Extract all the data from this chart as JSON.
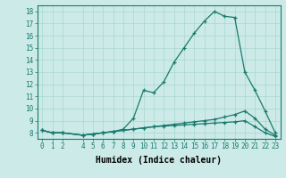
{
  "xlabel": "Humidex (Indice chaleur)",
  "background_color": "#cceae7",
  "line_color": "#1a7a6e",
  "grid_color": "#aad6d2",
  "xlim": [
    -0.5,
    23.5
  ],
  "ylim": [
    7.5,
    18.5
  ],
  "xticks": [
    0,
    1,
    2,
    4,
    5,
    6,
    7,
    8,
    9,
    10,
    11,
    12,
    13,
    14,
    15,
    16,
    17,
    18,
    19,
    20,
    21,
    22,
    23
  ],
  "yticks": [
    8,
    9,
    10,
    11,
    12,
    13,
    14,
    15,
    16,
    17,
    18
  ],
  "line1_x": [
    0,
    1,
    2,
    4,
    5,
    6,
    7,
    8,
    9,
    10,
    11,
    12,
    13,
    14,
    15,
    16,
    17,
    18,
    19,
    20,
    21,
    22,
    23
  ],
  "line1_y": [
    8.2,
    8.0,
    8.0,
    7.8,
    7.9,
    8.0,
    8.1,
    8.3,
    9.2,
    11.5,
    11.3,
    12.2,
    13.8,
    15.0,
    16.2,
    17.2,
    18.0,
    17.6,
    17.5,
    13.0,
    11.5,
    9.8,
    8.0
  ],
  "line2_x": [
    0,
    1,
    2,
    4,
    5,
    6,
    7,
    8,
    9,
    10,
    11,
    12,
    13,
    14,
    15,
    16,
    17,
    18,
    19,
    20,
    21,
    22,
    23
  ],
  "line2_y": [
    8.2,
    8.0,
    8.0,
    7.8,
    7.9,
    8.0,
    8.1,
    8.2,
    8.3,
    8.4,
    8.5,
    8.6,
    8.7,
    8.8,
    8.9,
    9.0,
    9.1,
    9.3,
    9.5,
    9.8,
    9.2,
    8.3,
    7.8
  ],
  "line3_x": [
    0,
    1,
    2,
    4,
    5,
    6,
    7,
    8,
    9,
    10,
    11,
    12,
    13,
    14,
    15,
    16,
    17,
    18,
    19,
    20,
    21,
    22,
    23
  ],
  "line3_y": [
    8.2,
    8.0,
    8.0,
    7.8,
    7.9,
    8.0,
    8.1,
    8.2,
    8.3,
    8.4,
    8.5,
    8.55,
    8.6,
    8.65,
    8.7,
    8.75,
    8.8,
    8.85,
    8.9,
    9.0,
    8.5,
    8.0,
    7.7
  ],
  "tick_fontsize": 5.5,
  "xlabel_fontsize": 7
}
